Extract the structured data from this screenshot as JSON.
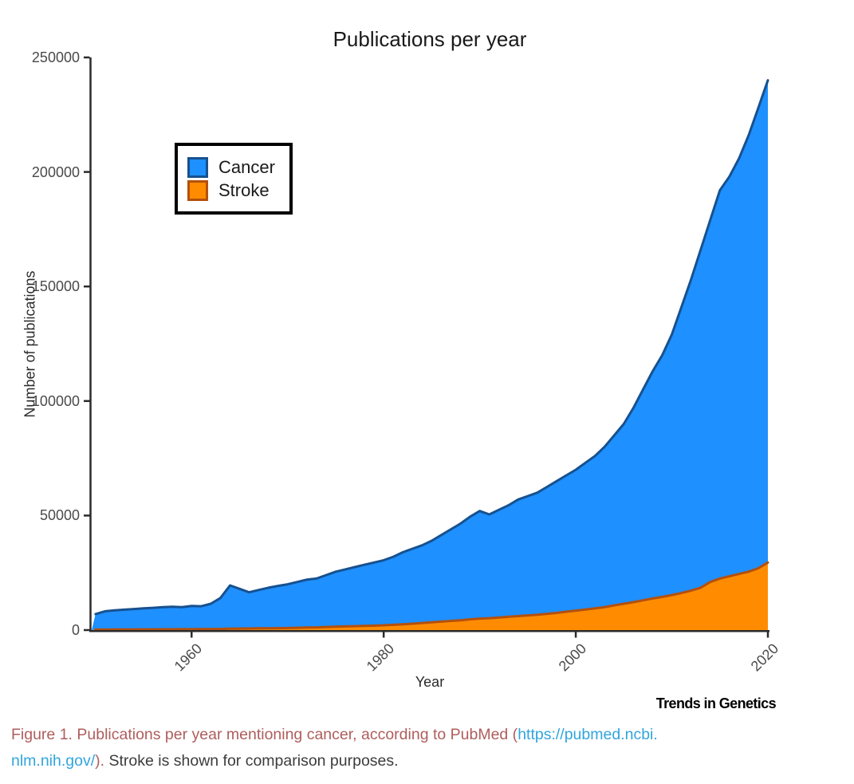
{
  "title": "Publications per year",
  "axes": {
    "x_label": "Year",
    "y_label": "Number of publications"
  },
  "legend": {
    "items": [
      {
        "label": "Cancer",
        "fill": "#1E90FF",
        "border": "#17518F"
      },
      {
        "label": "Stroke",
        "fill": "#FF8C00",
        "border": "#B5500C"
      }
    ]
  },
  "branding": "Trends in Genetics",
  "caption": {
    "part1": "Figure 1. Publications per year mentioning cancer, according to PubMed (",
    "link_line1": "https://pubmed.ncbi.",
    "link_line2": "nlm.nih.gov/",
    "part2": ").",
    "part3": " Stroke is shown for comparison purposes."
  },
  "colors": {
    "cancer_fill": "#1E90FF",
    "cancer_line": "#17518F",
    "stroke_fill": "#FF8C00",
    "stroke_line": "#B5500C",
    "axis_line": "#2b2b2b",
    "tick_text": "#4a4a4a",
    "caption_red": "#ae5e5c",
    "caption_link_blue": "#31a5dc"
  },
  "chart_data": {
    "type": "area",
    "title": "Publications per year",
    "xlabel": "Year",
    "ylabel": "Number of publications",
    "xlim": [
      1950,
      2020
    ],
    "ylim": [
      0,
      250000
    ],
    "x_ticks": [
      1960,
      1980,
      2000,
      2020
    ],
    "y_ticks": [
      0,
      50000,
      100000,
      150000,
      200000,
      250000
    ],
    "grid": false,
    "legend_position": "top-left-inside",
    "x": [
      1950,
      1951,
      1952,
      1953,
      1954,
      1955,
      1956,
      1957,
      1958,
      1959,
      1960,
      1961,
      1962,
      1963,
      1964,
      1965,
      1966,
      1967,
      1968,
      1969,
      1970,
      1971,
      1972,
      1973,
      1974,
      1975,
      1976,
      1977,
      1978,
      1979,
      1980,
      1981,
      1982,
      1983,
      1984,
      1985,
      1986,
      1987,
      1988,
      1989,
      1990,
      1991,
      1992,
      1993,
      1994,
      1995,
      1996,
      1997,
      1998,
      1999,
      2000,
      2001,
      2002,
      2003,
      2004,
      2005,
      2006,
      2007,
      2008,
      2009,
      2010,
      2011,
      2012,
      2013,
      2014,
      2015,
      2016,
      2017,
      2018,
      2019,
      2020
    ],
    "series": [
      {
        "name": "Cancer",
        "fill": "#1E90FF",
        "line": "#17518F",
        "values": [
          7000,
          8200,
          8600,
          8900,
          9200,
          9500,
          9700,
          10000,
          10200,
          10000,
          10500,
          10400,
          11500,
          14000,
          19500,
          18000,
          16500,
          17500,
          18500,
          19300,
          20000,
          21000,
          22000,
          22500,
          24000,
          25500,
          26500,
          27500,
          28500,
          29500,
          30500,
          32000,
          34000,
          35500,
          37000,
          39000,
          41500,
          44000,
          46500,
          49500,
          52000,
          50500,
          52500,
          54500,
          57000,
          58500,
          60000,
          62500,
          65000,
          67500,
          70000,
          73000,
          76000,
          80000,
          85000,
          90000,
          97000,
          105000,
          113000,
          120000,
          129000,
          141000,
          153000,
          166000,
          179000,
          192000,
          198000,
          206000,
          216000,
          228000,
          240000
        ]
      },
      {
        "name": "Stroke",
        "fill": "#FF8C00",
        "line": "#B5500C",
        "values": [
          200,
          220,
          240,
          260,
          280,
          300,
          320,
          340,
          360,
          380,
          400,
          420,
          450,
          500,
          600,
          650,
          700,
          750,
          800,
          850,
          900,
          1000,
          1100,
          1200,
          1350,
          1500,
          1600,
          1700,
          1800,
          1900,
          2100,
          2300,
          2500,
          2800,
          3100,
          3400,
          3700,
          4000,
          4300,
          4700,
          5000,
          5200,
          5500,
          5800,
          6100,
          6400,
          6700,
          7100,
          7500,
          8000,
          8500,
          9000,
          9500,
          10000,
          10800,
          11500,
          12200,
          13000,
          13800,
          14500,
          15300,
          16200,
          17200,
          18500,
          21000,
          22500,
          23500,
          24500,
          25500,
          27000,
          29500
        ]
      }
    ]
  }
}
